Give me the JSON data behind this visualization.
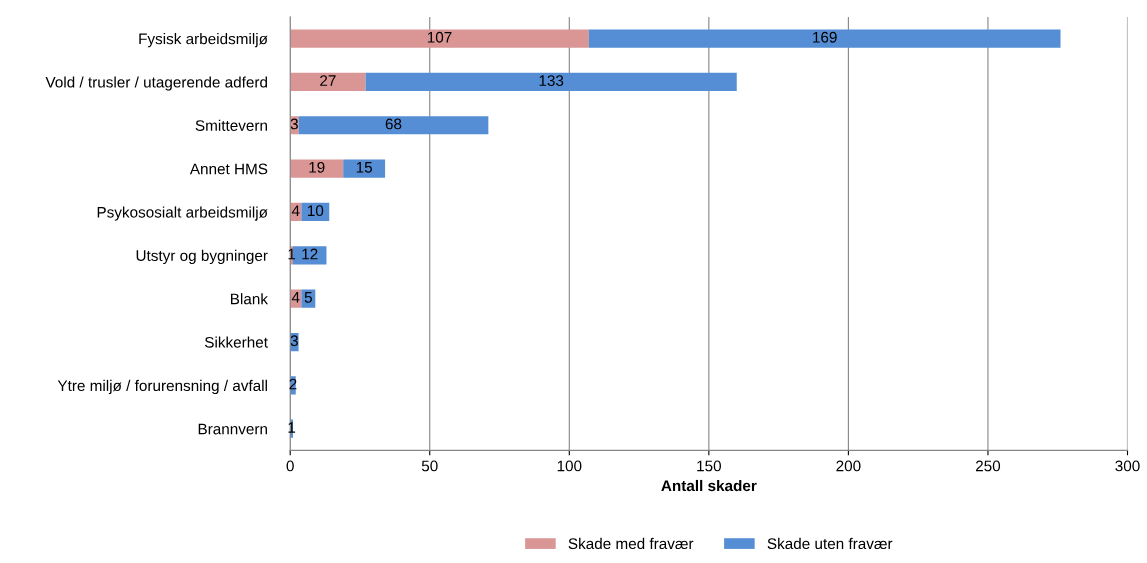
{
  "chart_data": {
    "type": "bar",
    "orientation": "horizontal",
    "stacked": true,
    "xlabel": "Antall skader",
    "categories": [
      "Fysisk arbeidsmiljø",
      "Vold / trusler / utagerende adferd",
      "Smittevern",
      "Annet HMS",
      "Psykososialt arbeidsmiljø",
      "Utstyr og bygninger",
      "Blank",
      "Sikkerhet",
      "Ytre miljø / forurensning / avfall",
      "Brannvern"
    ],
    "series": [
      {
        "name": "Skade med fravær",
        "color": "#d99694",
        "values": [
          107,
          27,
          3,
          19,
          4,
          1,
          4,
          null,
          null,
          null
        ]
      },
      {
        "name": "Skade uten fravær",
        "color": "#558ed5",
        "values": [
          169,
          133,
          68,
          15,
          10,
          12,
          5,
          3,
          2,
          1
        ]
      }
    ],
    "xlim": [
      0,
      300
    ],
    "xticks": [
      0,
      50,
      100,
      150,
      200,
      250,
      300
    ],
    "grid": "x",
    "legend": "bottom",
    "data_labels": true
  }
}
